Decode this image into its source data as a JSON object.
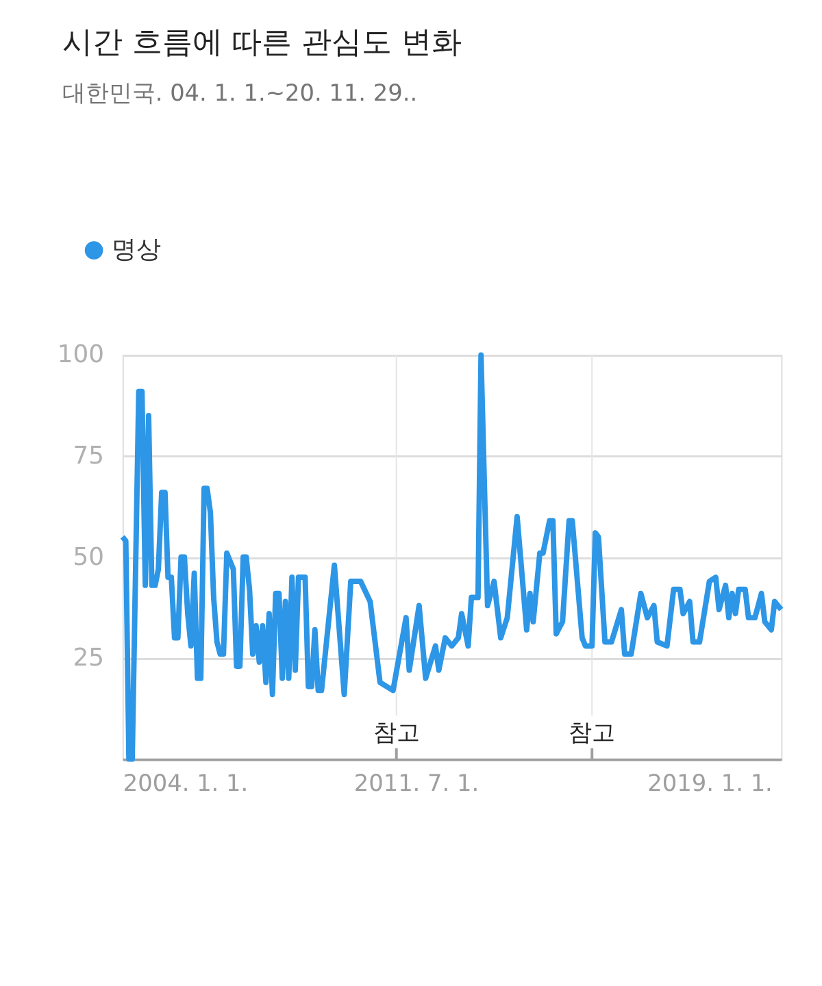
{
  "chart_data": {
    "type": "line",
    "title": "시간 흐름에 따른 관심도 변화",
    "subtitle": "대한민국. 04. 1. 1.~20. 11. 29..",
    "x": [
      "2004-01",
      "2004-02",
      "2004-03",
      "2004-04",
      "2004-05",
      "2004-06",
      "2004-07",
      "2004-08",
      "2004-09",
      "2004-10",
      "2004-11",
      "2004-12",
      "2005-01",
      "2005-02",
      "2005-03",
      "2005-04",
      "2005-05",
      "2005-06",
      "2005-07",
      "2005-08",
      "2005-09",
      "2005-10",
      "2005-11",
      "2005-12",
      "2006-01",
      "2006-02",
      "2006-03",
      "2006-04",
      "2006-05",
      "2006-06",
      "2006-07",
      "2006-08",
      "2006-09",
      "2006-10",
      "2006-11",
      "2006-12",
      "2007-01",
      "2007-02",
      "2007-03",
      "2007-04",
      "2007-05",
      "2007-06",
      "2007-07",
      "2007-08",
      "2007-09",
      "2007-10",
      "2007-11",
      "2007-12",
      "2008-01",
      "2008-02",
      "2008-03",
      "2008-04",
      "2008-05",
      "2008-06",
      "2008-07",
      "2008-08",
      "2008-09",
      "2008-10",
      "2008-11",
      "2008-12",
      "2009-01",
      "2009-02",
      "2009-06",
      "2009-09",
      "2009-11",
      "2010-02",
      "2010-05",
      "2010-08",
      "2010-12",
      "2011-04",
      "2011-05",
      "2011-08",
      "2011-10",
      "2012-01",
      "2012-02",
      "2012-04",
      "2012-06",
      "2012-08",
      "2012-09",
      "2012-11",
      "2012-12",
      "2013-02",
      "2013-03",
      "2013-05",
      "2013-07",
      "2013-09",
      "2013-11",
      "2014-02",
      "2014-05",
      "2014-06",
      "2014-07",
      "2014-09",
      "2014-10",
      "2014-12",
      "2015-01",
      "2015-02",
      "2015-04",
      "2015-06",
      "2015-07",
      "2015-10",
      "2015-11",
      "2016-01",
      "2016-02",
      "2016-03",
      "2016-05",
      "2016-07",
      "2016-10",
      "2016-11",
      "2017-01",
      "2017-04",
      "2017-06",
      "2017-08",
      "2017-09",
      "2017-12",
      "2018-02",
      "2018-04",
      "2018-05",
      "2018-07",
      "2018-08",
      "2018-10",
      "2019-01",
      "2019-03",
      "2019-04",
      "2019-06",
      "2019-07",
      "2019-08",
      "2019-09",
      "2019-10",
      "2019-12",
      "2020-01",
      "2020-03",
      "2020-05",
      "2020-06",
      "2020-08",
      "2020-09",
      "2020-11"
    ],
    "series": [
      {
        "name": "명상",
        "color": "#2d96e6",
        "values": [
          55,
          54,
          0,
          0,
          45,
          91,
          91,
          43,
          85,
          43,
          43,
          47,
          66,
          66,
          45,
          45,
          30,
          30,
          50,
          50,
          36,
          28,
          46,
          20,
          20,
          67,
          67,
          61,
          40,
          29,
          26,
          26,
          51,
          49,
          47,
          23,
          23,
          50,
          50,
          42,
          26,
          33,
          24,
          33,
          19,
          36,
          16,
          41,
          41,
          20,
          39,
          20,
          45,
          22,
          45,
          45,
          45,
          18,
          18,
          32,
          17,
          17,
          48,
          16,
          44,
          44,
          39,
          19,
          17,
          35,
          22,
          38,
          20,
          28,
          22,
          30,
          28,
          30,
          36,
          28,
          40,
          40,
          100,
          38,
          44,
          30,
          35,
          60,
          32,
          41,
          34,
          51,
          51,
          59,
          59,
          31,
          34,
          59,
          59,
          30,
          28,
          28,
          56,
          55,
          29,
          29,
          37,
          26,
          26,
          41,
          35,
          38,
          29,
          28,
          42,
          42,
          36,
          39,
          29,
          29,
          44,
          45,
          37,
          43,
          35,
          41,
          36,
          42,
          42,
          35,
          35,
          41,
          34,
          32,
          39,
          37
        ]
      }
    ],
    "xlim": [
      "2004-01",
      "2020-11"
    ],
    "xticks": [
      {
        "value": "2004-01-01",
        "label": "2004. 1. 1."
      },
      {
        "value": "2011-07-01",
        "label": "2011. 7. 1."
      },
      {
        "value": "2019-01-01",
        "label": "2019. 1. 1."
      }
    ],
    "ylim": [
      0,
      100
    ],
    "yticks": [
      25,
      50,
      75,
      100
    ],
    "ref_lines": [
      {
        "axis": "x",
        "value": "2011-01",
        "label": "참고"
      },
      {
        "axis": "x",
        "value": "2016-01",
        "label": "참고"
      }
    ],
    "grid": "y",
    "legend": "top left",
    "marker": "none",
    "line_style": "solid"
  }
}
